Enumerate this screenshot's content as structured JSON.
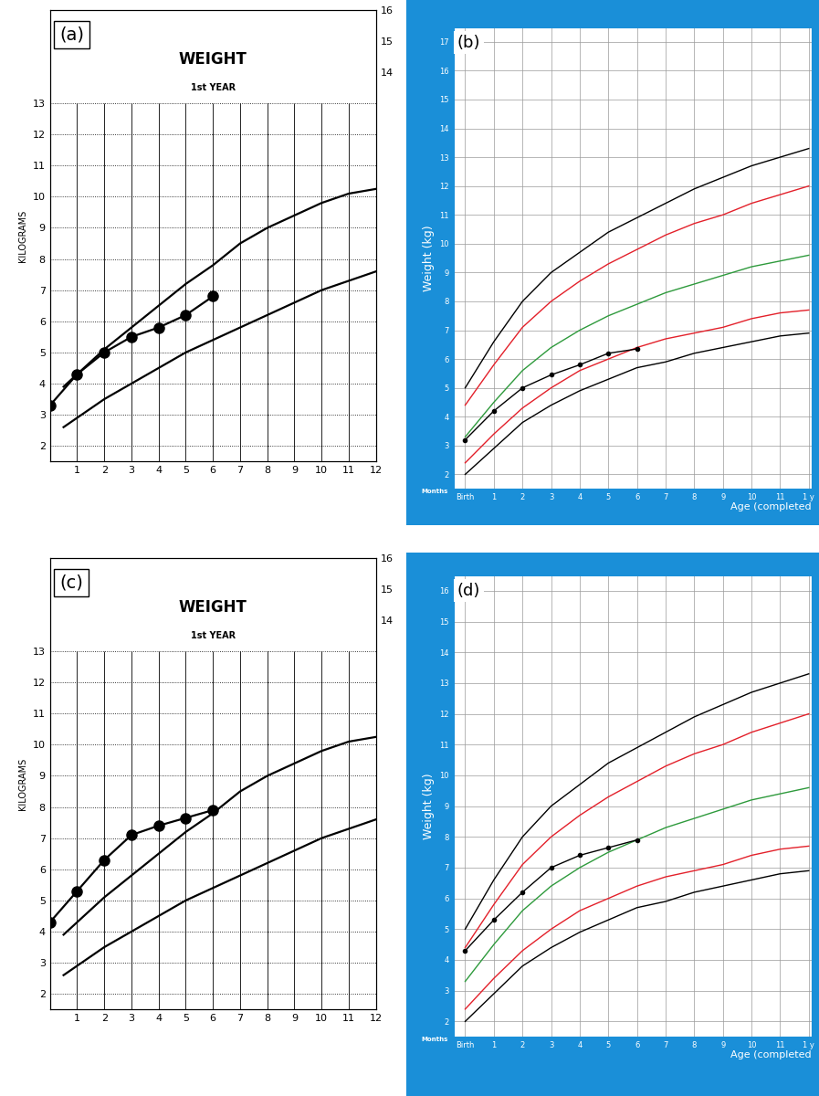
{
  "chart_data": [
    {
      "type": "line",
      "panel_label": "(a)",
      "title": "WEIGHT",
      "subtitle": "1st YEAR",
      "ylabel": "KILOGRAMS",
      "xlim": [
        0,
        12
      ],
      "xticks": [
        1,
        2,
        3,
        4,
        5,
        6,
        7,
        8,
        9,
        10,
        11,
        12
      ],
      "ylim": [
        1.5,
        16
      ],
      "yticks": [
        2,
        3,
        4,
        5,
        6,
        7,
        8,
        9,
        10,
        11,
        12,
        13
      ],
      "y2lim": [
        1.5,
        16
      ],
      "y2ticks": [
        14,
        15,
        16
      ],
      "grid": true,
      "series": [
        {
          "color": "#000000",
          "line_style": "solid",
          "x": [
            0.5,
            1,
            2,
            3,
            4,
            5,
            6,
            7,
            8,
            9,
            10,
            11,
            12
          ],
          "values": [
            3.9,
            4.3,
            5.1,
            5.8,
            6.5,
            7.2,
            7.8,
            8.5,
            9.0,
            9.4,
            9.8,
            10.1,
            10.25
          ]
        },
        {
          "color": "#000000",
          "line_style": "solid",
          "x": [
            0.5,
            1,
            2,
            3,
            4,
            5,
            6,
            7,
            8,
            9,
            10,
            11,
            12
          ],
          "values": [
            2.6,
            2.9,
            3.5,
            4.0,
            4.5,
            5.0,
            5.4,
            5.8,
            6.2,
            6.6,
            7.0,
            7.3,
            7.6
          ]
        },
        {
          "color": "#000000",
          "line_style": "solid",
          "marker": "o",
          "x": [
            0,
            1,
            2,
            3,
            4,
            5,
            6
          ],
          "values": [
            3.3,
            4.3,
            5.0,
            5.5,
            5.8,
            6.2,
            6.8
          ]
        }
      ]
    },
    {
      "type": "line",
      "panel_label": "(b)",
      "ylabel": "Weight (kg)",
      "xlabel": "Age (completed",
      "annotations": [
        "Months"
      ],
      "xlim": [
        -0.4,
        12.1
      ],
      "xticks": [
        {
          "value": 0,
          "label": "Birth"
        },
        1,
        2,
        3,
        4,
        5,
        6,
        7,
        8,
        9,
        10,
        11,
        {
          "value": 12,
          "label": "1 y"
        }
      ],
      "ylim": [
        1.5,
        17.5
      ],
      "yticks": [
        2,
        3,
        4,
        5,
        6,
        7,
        8,
        9,
        10,
        11,
        12,
        13,
        14,
        15,
        16,
        17
      ],
      "grid": true,
      "series": [
        {
          "color": "#000000",
          "line_style": "solid",
          "x": [
            0,
            1,
            2,
            3,
            4,
            5,
            6,
            7,
            8,
            9,
            10,
            11,
            12
          ],
          "values": [
            5.0,
            6.6,
            8.0,
            9.0,
            9.7,
            10.4,
            10.9,
            11.4,
            11.9,
            12.3,
            12.7,
            13.0,
            13.3
          ]
        },
        {
          "color": "#e3202a",
          "line_style": "solid",
          "x": [
            0,
            1,
            2,
            3,
            4,
            5,
            6,
            7,
            8,
            9,
            10,
            11,
            12
          ],
          "values": [
            4.4,
            5.8,
            7.1,
            8.0,
            8.7,
            9.3,
            9.8,
            10.3,
            10.7,
            11.0,
            11.4,
            11.7,
            12.0
          ]
        },
        {
          "color": "#2e9a3c",
          "line_style": "solid",
          "x": [
            0,
            1,
            2,
            3,
            4,
            5,
            6,
            7,
            8,
            9,
            10,
            11,
            12
          ],
          "values": [
            3.3,
            4.5,
            5.6,
            6.4,
            7.0,
            7.5,
            7.9,
            8.3,
            8.6,
            8.9,
            9.2,
            9.4,
            9.6
          ]
        },
        {
          "color": "#e3202a",
          "line_style": "solid",
          "x": [
            0,
            1,
            2,
            3,
            4,
            5,
            6,
            7,
            8,
            9,
            10,
            11,
            12
          ],
          "values": [
            2.4,
            3.4,
            4.3,
            5.0,
            5.6,
            6.0,
            6.4,
            6.7,
            6.9,
            7.1,
            7.4,
            7.6,
            7.7
          ]
        },
        {
          "color": "#000000",
          "line_style": "solid",
          "x": [
            0,
            1,
            2,
            3,
            4,
            5,
            6,
            7,
            8,
            9,
            10,
            11,
            12
          ],
          "values": [
            2.0,
            2.9,
            3.8,
            4.4,
            4.9,
            5.3,
            5.7,
            5.9,
            6.2,
            6.4,
            6.6,
            6.8,
            6.9
          ]
        },
        {
          "color": "#000000",
          "line_style": "solid",
          "marker": "o",
          "x": [
            0,
            1,
            2,
            3,
            4,
            5,
            6
          ],
          "values": [
            3.2,
            4.2,
            5.0,
            5.45,
            5.8,
            6.2,
            6.35
          ]
        }
      ]
    },
    {
      "type": "line",
      "panel_label": "(c)",
      "title": "WEIGHT",
      "subtitle": "1st YEAR",
      "ylabel": "KILOGRAMS",
      "xlim": [
        0,
        12
      ],
      "xticks": [
        1,
        2,
        3,
        4,
        5,
        6,
        7,
        8,
        9,
        10,
        11,
        12
      ],
      "ylim": [
        1.5,
        16
      ],
      "yticks": [
        2,
        3,
        4,
        5,
        6,
        7,
        8,
        9,
        10,
        11,
        12,
        13
      ],
      "y2lim": [
        1.5,
        16
      ],
      "y2ticks": [
        14,
        15,
        16
      ],
      "grid": true,
      "series": [
        {
          "color": "#000000",
          "line_style": "solid",
          "x": [
            0.5,
            1,
            2,
            3,
            4,
            5,
            6,
            7,
            8,
            9,
            10,
            11,
            12
          ],
          "values": [
            3.9,
            4.3,
            5.1,
            5.8,
            6.5,
            7.2,
            7.8,
            8.5,
            9.0,
            9.4,
            9.8,
            10.1,
            10.25
          ]
        },
        {
          "color": "#000000",
          "line_style": "solid",
          "x": [
            0.5,
            1,
            2,
            3,
            4,
            5,
            6,
            7,
            8,
            9,
            10,
            11,
            12
          ],
          "values": [
            2.6,
            2.9,
            3.5,
            4.0,
            4.5,
            5.0,
            5.4,
            5.8,
            6.2,
            6.6,
            7.0,
            7.3,
            7.6
          ]
        },
        {
          "color": "#000000",
          "line_style": "solid",
          "marker": "o",
          "x": [
            0,
            1,
            2,
            3,
            4,
            5,
            6
          ],
          "values": [
            4.3,
            5.3,
            6.3,
            7.1,
            7.4,
            7.65,
            7.9
          ]
        }
      ]
    },
    {
      "type": "line",
      "panel_label": "(d)",
      "ylabel": "Weight (kg)",
      "xlabel": "Age (completed",
      "annotations": [
        "Months"
      ],
      "xlim": [
        -0.4,
        12.1
      ],
      "xticks": [
        {
          "value": 0,
          "label": "Birth"
        },
        1,
        2,
        3,
        4,
        5,
        6,
        7,
        8,
        9,
        10,
        11,
        {
          "value": 12,
          "label": "1 y"
        }
      ],
      "ylim": [
        1.5,
        16.5
      ],
      "yticks": [
        2,
        3,
        4,
        5,
        6,
        7,
        8,
        9,
        10,
        11,
        12,
        13,
        14,
        15,
        16
      ],
      "grid": true,
      "series": [
        {
          "color": "#000000",
          "line_style": "solid",
          "x": [
            0,
            1,
            2,
            3,
            4,
            5,
            6,
            7,
            8,
            9,
            10,
            11,
            12
          ],
          "values": [
            5.0,
            6.6,
            8.0,
            9.0,
            9.7,
            10.4,
            10.9,
            11.4,
            11.9,
            12.3,
            12.7,
            13.0,
            13.3
          ]
        },
        {
          "color": "#e3202a",
          "line_style": "solid",
          "x": [
            0,
            1,
            2,
            3,
            4,
            5,
            6,
            7,
            8,
            9,
            10,
            11,
            12
          ],
          "values": [
            4.4,
            5.8,
            7.1,
            8.0,
            8.7,
            9.3,
            9.8,
            10.3,
            10.7,
            11.0,
            11.4,
            11.7,
            12.0
          ]
        },
        {
          "color": "#2e9a3c",
          "line_style": "solid",
          "x": [
            0,
            1,
            2,
            3,
            4,
            5,
            6,
            7,
            8,
            9,
            10,
            11,
            12
          ],
          "values": [
            3.3,
            4.5,
            5.6,
            6.4,
            7.0,
            7.5,
            7.9,
            8.3,
            8.6,
            8.9,
            9.2,
            9.4,
            9.6
          ]
        },
        {
          "color": "#e3202a",
          "line_style": "solid",
          "x": [
            0,
            1,
            2,
            3,
            4,
            5,
            6,
            7,
            8,
            9,
            10,
            11,
            12
          ],
          "values": [
            2.4,
            3.4,
            4.3,
            5.0,
            5.6,
            6.0,
            6.4,
            6.7,
            6.9,
            7.1,
            7.4,
            7.6,
            7.7
          ]
        },
        {
          "color": "#000000",
          "line_style": "solid",
          "x": [
            0,
            1,
            2,
            3,
            4,
            5,
            6,
            7,
            8,
            9,
            10,
            11,
            12
          ],
          "values": [
            2.0,
            2.9,
            3.8,
            4.4,
            4.9,
            5.3,
            5.7,
            5.9,
            6.2,
            6.4,
            6.6,
            6.8,
            6.9
          ]
        },
        {
          "color": "#000000",
          "line_style": "solid",
          "marker": "o",
          "x": [
            0,
            1,
            2,
            3,
            4,
            5,
            6
          ],
          "values": [
            4.3,
            5.3,
            6.2,
            7.0,
            7.4,
            7.65,
            7.9
          ]
        }
      ]
    }
  ]
}
